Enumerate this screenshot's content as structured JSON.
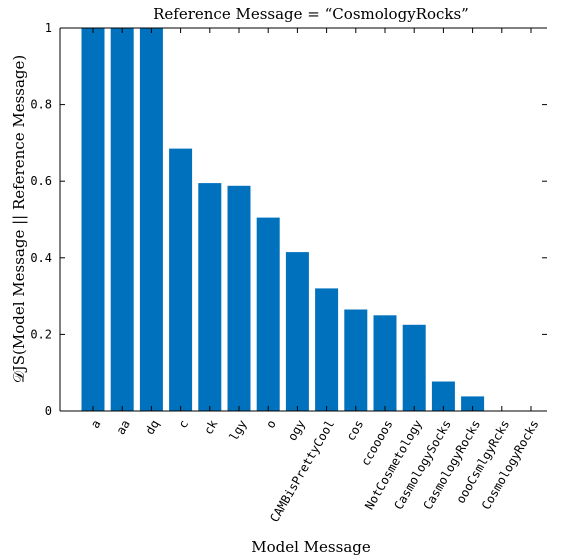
{
  "chart_data": {
    "type": "bar",
    "title": "Reference Message = “CosmologyRocks”",
    "xlabel": "Model Message",
    "ylabel": "𝒟JS(Model Message || Reference Message)",
    "categories": [
      "a",
      "aa",
      "dq",
      "c",
      "ck",
      "lgy",
      "o",
      "ogy",
      "CAMBisPrettyCool",
      "cos",
      "ccoooos",
      "NotCosmetology",
      "CasmologySocks",
      "CasmologyRocks",
      "oooCsmlgyRcks",
      "CosmologyRocks"
    ],
    "values": [
      1.0,
      1.0,
      1.0,
      0.685,
      0.595,
      0.588,
      0.505,
      0.415,
      0.32,
      0.265,
      0.25,
      0.225,
      0.077,
      0.038,
      0.0,
      0.0
    ],
    "ylim": [
      0,
      1
    ],
    "yticks": [
      "0",
      "0.2",
      "0.4",
      "0.6",
      "0.8",
      "1"
    ],
    "bar_color": "#0072bd",
    "grid": false,
    "legend": "none"
  }
}
